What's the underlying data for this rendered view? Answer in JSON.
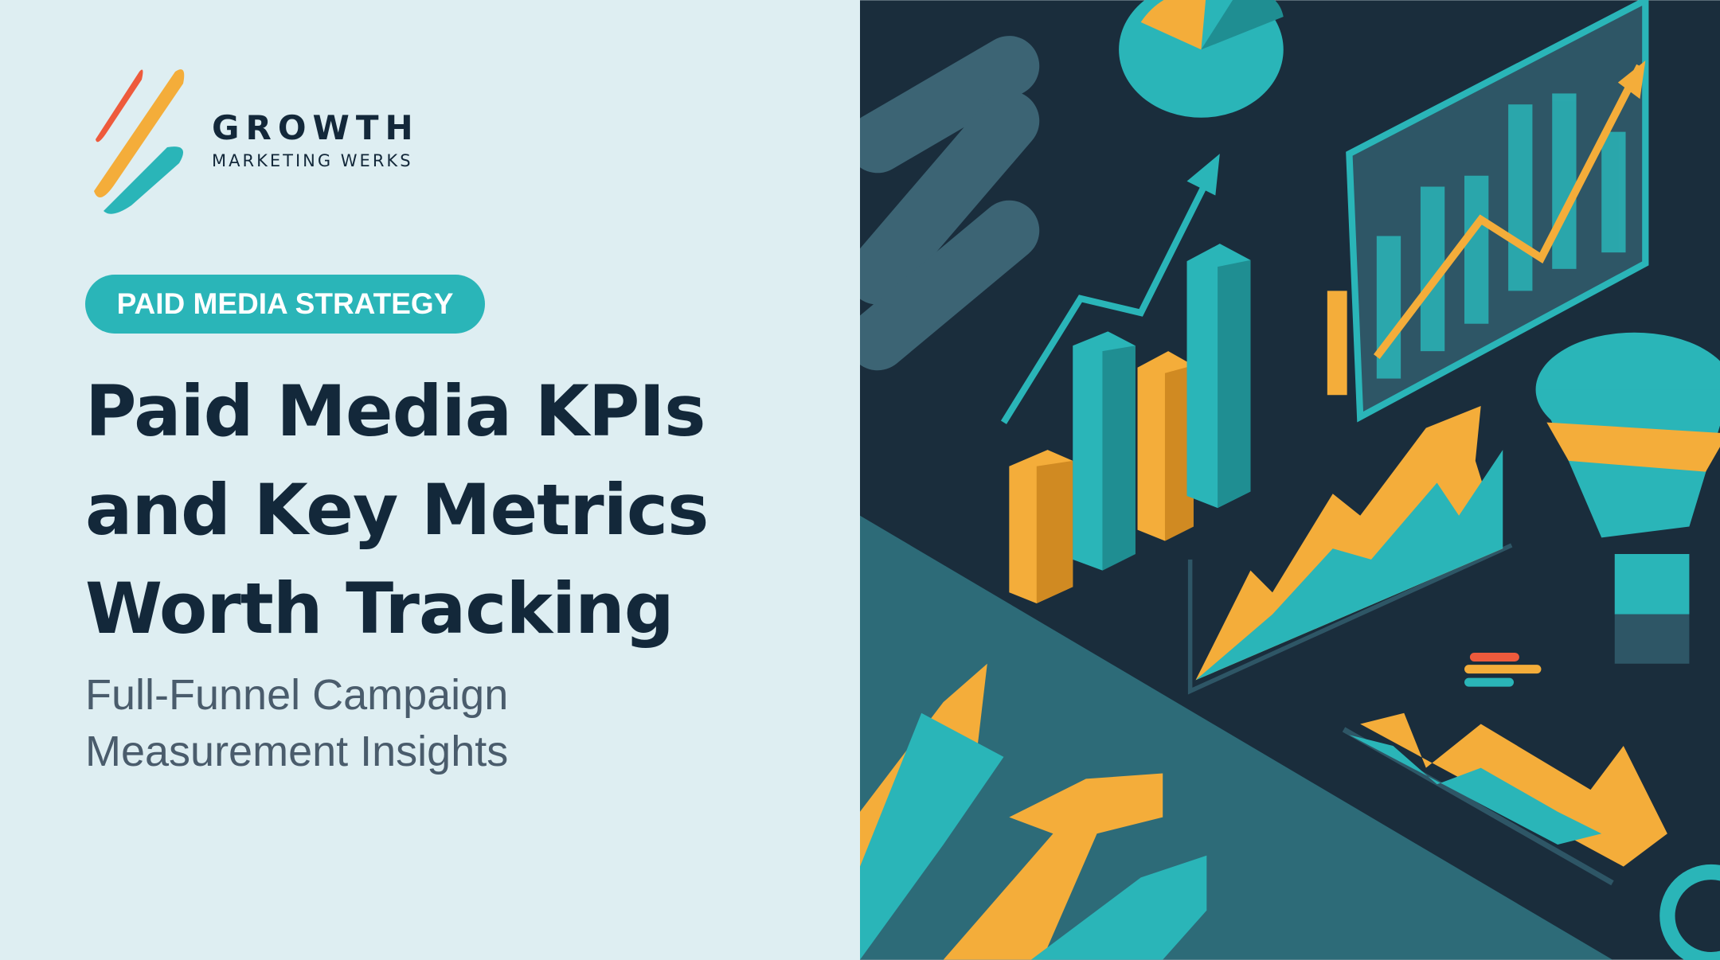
{
  "logo": {
    "name": "GROWTH",
    "tagline": "MARKETING WERKS"
  },
  "tag": "PAID MEDIA STRATEGY",
  "title": [
    "Paid Media KPIs",
    "and Key Metrics",
    "Worth Tracking"
  ],
  "subtitle": [
    "Full-Funnel Campaign",
    "Measurement Insights"
  ]
}
